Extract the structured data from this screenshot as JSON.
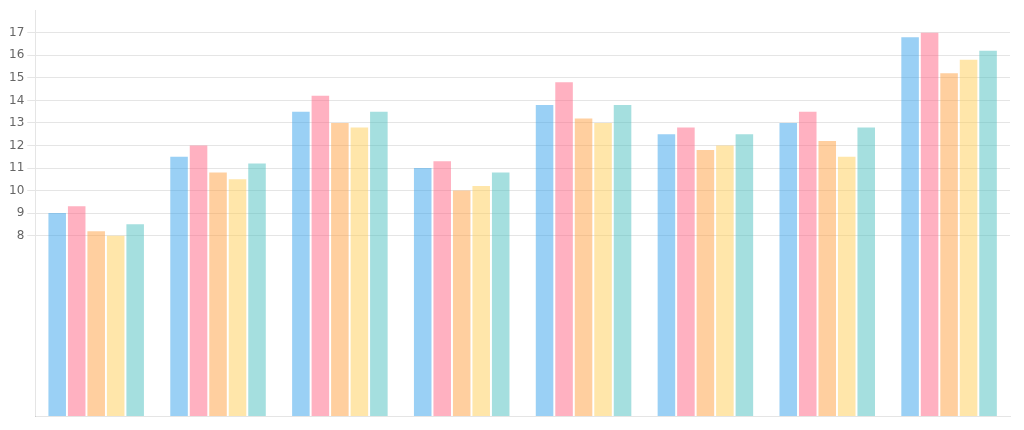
{
  "chart_data": {
    "type": "bar",
    "categories": [
      null,
      null,
      null,
      null,
      null,
      null,
      null,
      null
    ],
    "series": [
      {
        "values": [
          9.0,
          11.5,
          13.5,
          11.0,
          13.8,
          12.5,
          13.0,
          16.8
        ]
      },
      {
        "values": [
          9.3,
          12.0,
          14.2,
          11.3,
          14.8,
          12.8,
          13.5,
          17.0
        ]
      },
      {
        "values": [
          8.2,
          10.8,
          13.0,
          10.0,
          13.2,
          11.8,
          12.2,
          15.2
        ]
      },
      {
        "values": [
          8.0,
          10.5,
          12.8,
          10.2,
          13.0,
          12.0,
          11.5,
          15.8
        ]
      },
      {
        "values": [
          8.5,
          11.2,
          13.5,
          10.8,
          13.8,
          12.5,
          12.8,
          16.2
        ]
      }
    ],
    "ylim": [
      0,
      18
    ],
    "yticks": [
      8,
      9,
      10,
      11,
      12,
      13,
      14,
      15,
      16,
      17
    ],
    "grid": true,
    "tick_labels": "y"
  }
}
